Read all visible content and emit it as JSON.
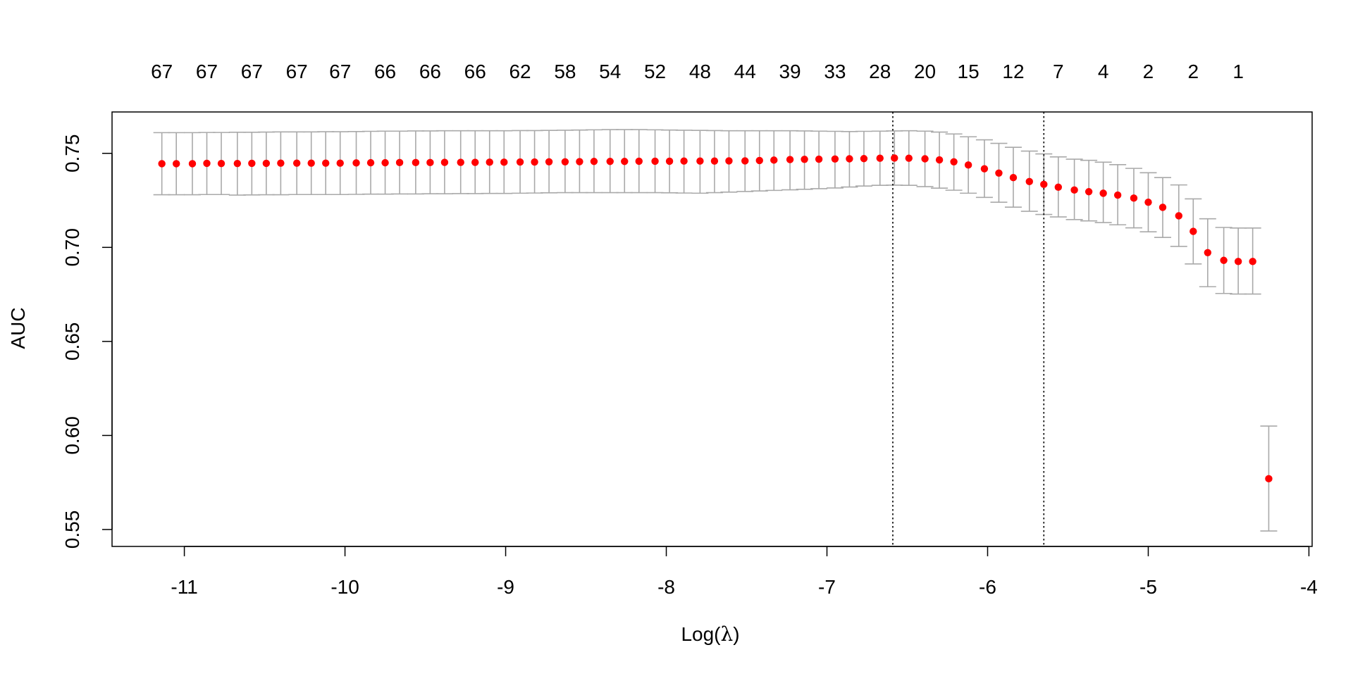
{
  "chart_data": {
    "type": "scatter",
    "xlabel_prefix": "Log(",
    "xlabel_symbol": "λ",
    "xlabel_suffix": ")",
    "ylabel": "AUC",
    "xlim": [
      -11.45,
      -3.98
    ],
    "ylim": [
      0.541,
      0.772
    ],
    "x_ticks": [
      -11,
      -10,
      -9,
      -8,
      -7,
      -6,
      -5,
      -4
    ],
    "x_tick_labels": [
      "-11",
      "-10",
      "-9",
      "-8",
      "-7",
      "-6",
      "-5",
      "-4"
    ],
    "y_ticks": [
      0.55,
      0.6,
      0.65,
      0.7,
      0.75
    ],
    "y_tick_labels": [
      "0.55",
      "0.60",
      "0.65",
      "0.70",
      "0.75"
    ],
    "top_axis": {
      "x": [
        -11.14,
        -10.86,
        -10.58,
        -10.3,
        -10.03,
        -9.75,
        -9.47,
        -9.19,
        -8.91,
        -8.63,
        -8.35,
        -8.07,
        -7.79,
        -7.51,
        -7.23,
        -6.95,
        -6.67,
        -6.39,
        -6.12,
        -5.84,
        -5.56,
        -5.28,
        -5.0,
        -4.72,
        -4.44
      ],
      "labels": [
        "67",
        "67",
        "67",
        "67",
        "67",
        "66",
        "66",
        "66",
        "62",
        "58",
        "54",
        "52",
        "48",
        "44",
        "39",
        "33",
        "28",
        "20",
        "15",
        "12",
        "7",
        "4",
        "2",
        "2",
        "1"
      ]
    },
    "vlines": [
      -6.59,
      -5.65
    ],
    "series": [
      {
        "x": [
          -11.14,
          -11.05,
          -10.95,
          -10.86,
          -10.77,
          -10.67,
          -10.58,
          -10.49,
          -10.4,
          -10.3,
          -10.21,
          -10.12,
          -10.03,
          -9.93,
          -9.84,
          -9.75,
          -9.66,
          -9.56,
          -9.47,
          -9.38,
          -9.28,
          -9.19,
          -9.1,
          -9.01,
          -8.91,
          -8.82,
          -8.73,
          -8.63,
          -8.54,
          -8.45,
          -8.35,
          -8.26,
          -8.17,
          -8.07,
          -7.98,
          -7.89,
          -7.79,
          -7.7,
          -7.61,
          -7.51,
          -7.42,
          -7.33,
          -7.23,
          -7.14,
          -7.05,
          -6.95,
          -6.86,
          -6.77,
          -6.67,
          -6.58,
          -6.49,
          -6.39,
          -6.3,
          -6.21,
          -6.12,
          -6.02,
          -5.93,
          -5.84,
          -5.74,
          -5.65,
          -5.56,
          -5.46,
          -5.37,
          -5.28,
          -5.19,
          -5.09,
          -5.0,
          -4.91,
          -4.81,
          -4.72,
          -4.63,
          -4.53,
          -4.44,
          -4.35,
          -4.25
        ],
        "y": [
          0.7445,
          0.7445,
          0.7445,
          0.7447,
          0.7446,
          0.7446,
          0.7447,
          0.7447,
          0.7448,
          0.7448,
          0.7448,
          0.7448,
          0.7448,
          0.7449,
          0.745,
          0.745,
          0.7451,
          0.7451,
          0.7451,
          0.7452,
          0.7452,
          0.7452,
          0.7453,
          0.7453,
          0.7454,
          0.7454,
          0.7455,
          0.7455,
          0.7456,
          0.7457,
          0.7457,
          0.7457,
          0.7458,
          0.7458,
          0.7458,
          0.7459,
          0.7459,
          0.7459,
          0.746,
          0.746,
          0.7462,
          0.7464,
          0.7467,
          0.7468,
          0.7469,
          0.747,
          0.7471,
          0.7472,
          0.7474,
          0.7475,
          0.7474,
          0.7471,
          0.7465,
          0.7455,
          0.7438,
          0.7418,
          0.7395,
          0.7371,
          0.735,
          0.7335,
          0.732,
          0.7305,
          0.7296,
          0.7288,
          0.7278,
          0.7262,
          0.724,
          0.7213,
          0.7168,
          0.7085,
          0.6972,
          0.6931,
          0.6925,
          0.6925,
          0.577
        ],
        "upper": [
          0.761,
          0.761,
          0.761,
          0.7611,
          0.7611,
          0.7612,
          0.7612,
          0.7613,
          0.7614,
          0.7614,
          0.7614,
          0.7615,
          0.7615,
          0.7616,
          0.7617,
          0.7618,
          0.7618,
          0.7619,
          0.7619,
          0.762,
          0.762,
          0.762,
          0.762,
          0.762,
          0.7621,
          0.7621,
          0.7622,
          0.7623,
          0.7624,
          0.7625,
          0.7626,
          0.7626,
          0.7626,
          0.7625,
          0.7624,
          0.7623,
          0.7622,
          0.7621,
          0.762,
          0.762,
          0.762,
          0.762,
          0.762,
          0.7619,
          0.7618,
          0.7617,
          0.7616,
          0.7617,
          0.7618,
          0.7619,
          0.762,
          0.7618,
          0.7613,
          0.7603,
          0.7588,
          0.7572,
          0.7553,
          0.7532,
          0.7512,
          0.7497,
          0.7481,
          0.7469,
          0.7463,
          0.7453,
          0.744,
          0.742,
          0.7397,
          0.7371,
          0.7332,
          0.7258,
          0.7152,
          0.7106,
          0.7103,
          0.7103,
          0.605
        ],
        "lower": [
          0.728,
          0.728,
          0.728,
          0.7281,
          0.7281,
          0.7278,
          0.7279,
          0.728,
          0.728,
          0.7281,
          0.7281,
          0.7281,
          0.7281,
          0.7282,
          0.7283,
          0.7283,
          0.7284,
          0.7284,
          0.7285,
          0.7285,
          0.7286,
          0.7286,
          0.7287,
          0.7287,
          0.7288,
          0.7289,
          0.729,
          0.7291,
          0.7291,
          0.7291,
          0.7291,
          0.7291,
          0.7291,
          0.7291,
          0.729,
          0.7289,
          0.7288,
          0.7291,
          0.7294,
          0.7297,
          0.73,
          0.7303,
          0.7306,
          0.7309,
          0.7312,
          0.7316,
          0.7321,
          0.7326,
          0.733,
          0.7331,
          0.733,
          0.7323,
          0.7315,
          0.7304,
          0.7288,
          0.7266,
          0.724,
          0.7214,
          0.7192,
          0.7175,
          0.7162,
          0.7148,
          0.7141,
          0.7132,
          0.712,
          0.7104,
          0.7083,
          0.7053,
          0.7005,
          0.6912,
          0.6791,
          0.6755,
          0.6752,
          0.6752,
          0.5492
        ]
      }
    ],
    "colors": {
      "points": "#ff0000",
      "error_bars": "#a9a9a9",
      "axes": "#000000",
      "vlines": "#000000"
    },
    "grid": false,
    "legend": "none"
  }
}
